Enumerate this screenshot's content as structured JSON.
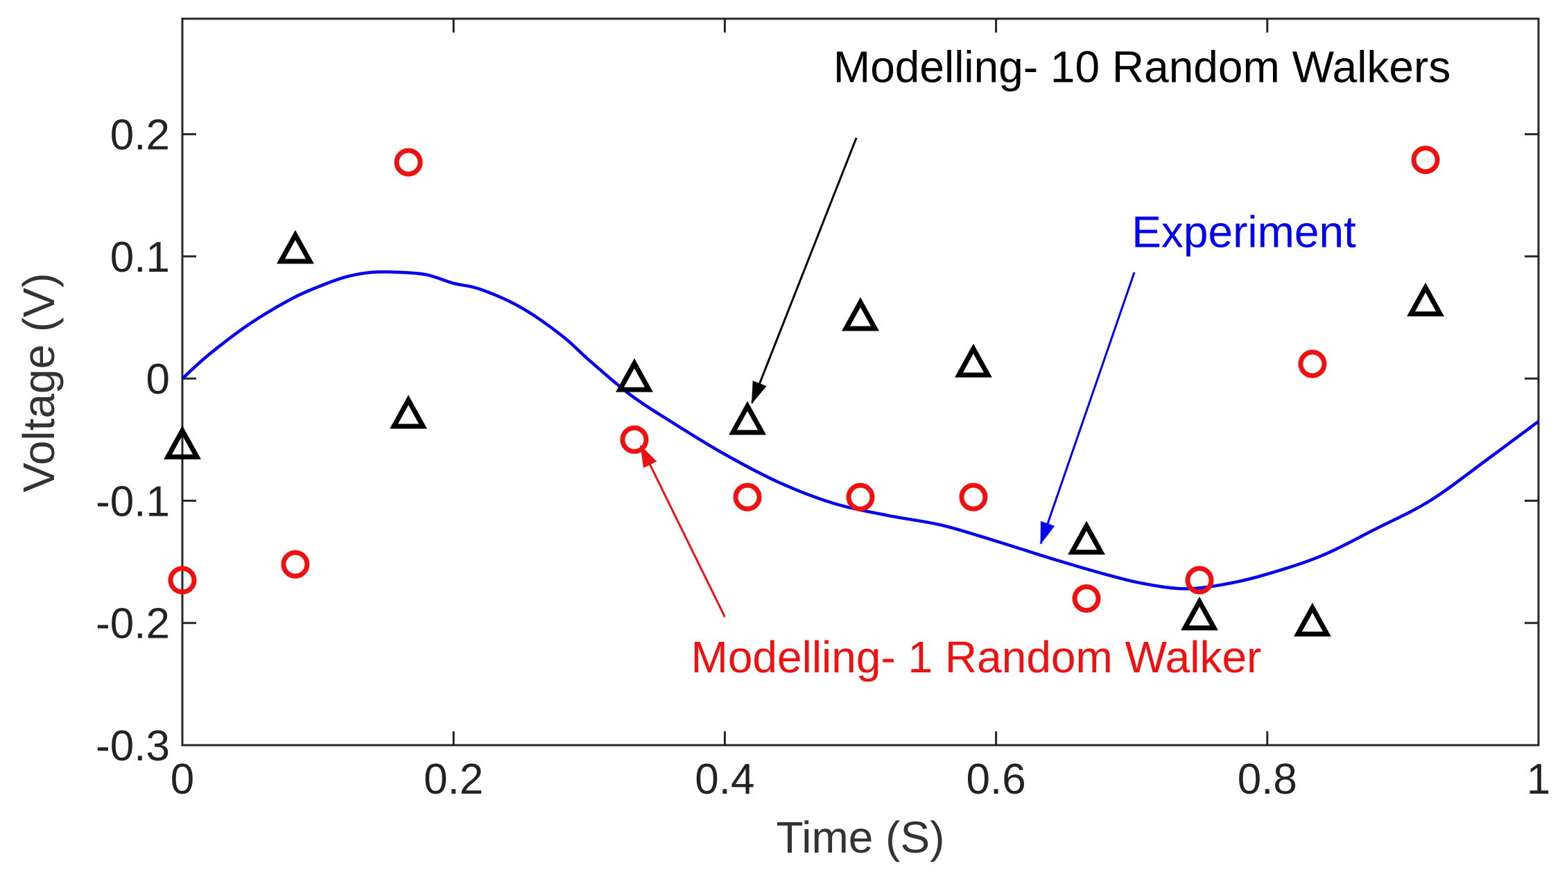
{
  "chart_data": {
    "type": "scatter",
    "title": "",
    "xlabel": "Time (S)",
    "ylabel": "Voltage (V)",
    "xlim": [
      0,
      1
    ],
    "ylim": [
      -0.3,
      0.3
    ],
    "xticks": [
      0,
      0.2,
      0.4,
      0.6,
      0.8,
      1
    ],
    "xtick_labels": [
      "0",
      "0.2",
      "0.4",
      "0.6",
      "0.8",
      "1"
    ],
    "yticks": [
      -0.3,
      -0.2,
      -0.1,
      0,
      0.1,
      0.2
    ],
    "ytick_labels": [
      "-0.3",
      "-0.2",
      "-0.1",
      "0",
      "0.1",
      "0.2"
    ],
    "grid": false,
    "series": [
      {
        "name": "Experiment",
        "kind": "line",
        "color": "#0000ee",
        "x": [
          0,
          0.02,
          0.05,
          0.08,
          0.1,
          0.12,
          0.14,
          0.16,
          0.18,
          0.2,
          0.22,
          0.25,
          0.28,
          0.3,
          0.33,
          0.36,
          0.4,
          0.44,
          0.48,
          0.52,
          0.56,
          0.6,
          0.64,
          0.68,
          0.71,
          0.74,
          0.77,
          0.8,
          0.84,
          0.88,
          0.92,
          0.96,
          1.0
        ],
        "y": [
          0,
          0.02,
          0.045,
          0.065,
          0.075,
          0.083,
          0.087,
          0.087,
          0.085,
          0.078,
          0.073,
          0.058,
          0.035,
          0.015,
          -0.013,
          -0.035,
          -0.062,
          -0.085,
          -0.102,
          -0.112,
          -0.12,
          -0.133,
          -0.147,
          -0.16,
          -0.168,
          -0.172,
          -0.168,
          -0.16,
          -0.145,
          -0.123,
          -0.1,
          -0.068,
          -0.035
        ]
      },
      {
        "name": "Modelling- 10 Random Walkers",
        "kind": "scatter",
        "marker": "triangle",
        "color": "#000000",
        "x": [
          0,
          0.0833,
          0.1667,
          0.3333,
          0.4167,
          0.5,
          0.5833,
          0.6667,
          0.75,
          0.8333,
          0.9167
        ],
        "y": [
          -0.055,
          0.105,
          -0.03,
          0.0,
          -0.035,
          0.05,
          0.012,
          -0.133,
          -0.195,
          -0.2,
          0.062
        ]
      },
      {
        "name": "Modelling- 1 Random Walker",
        "kind": "scatter",
        "marker": "circle",
        "color": "#ee1111",
        "x": [
          0,
          0.0833,
          0.1667,
          0.3333,
          0.4167,
          0.5,
          0.5833,
          0.6667,
          0.75,
          0.8333,
          0.9167
        ],
        "y": [
          -0.165,
          -0.152,
          0.177,
          -0.05,
          -0.097,
          -0.097,
          -0.097,
          -0.18,
          -0.165,
          0.012,
          0.179
        ]
      }
    ],
    "annotations": [
      {
        "text": "Modelling- 10 Random Walkers",
        "color": "#000000",
        "text_anchor": [
          0.48,
          0.255
        ],
        "arrow_from": [
          0.497,
          0.197
        ],
        "arrow_to": [
          0.42,
          -0.02
        ]
      },
      {
        "text": "Experiment",
        "color": "#0000ee",
        "text_anchor": [
          0.7,
          0.12
        ],
        "arrow_from": [
          0.702,
          0.087
        ],
        "arrow_to": [
          0.633,
          -0.135
        ]
      },
      {
        "text": "Modelling- 1 Random Walker",
        "color": "#ee1111",
        "text_anchor": [
          0.375,
          -0.228
        ],
        "arrow_from": [
          0.4,
          -0.195
        ],
        "arrow_to": [
          0.338,
          -0.055
        ]
      }
    ]
  }
}
